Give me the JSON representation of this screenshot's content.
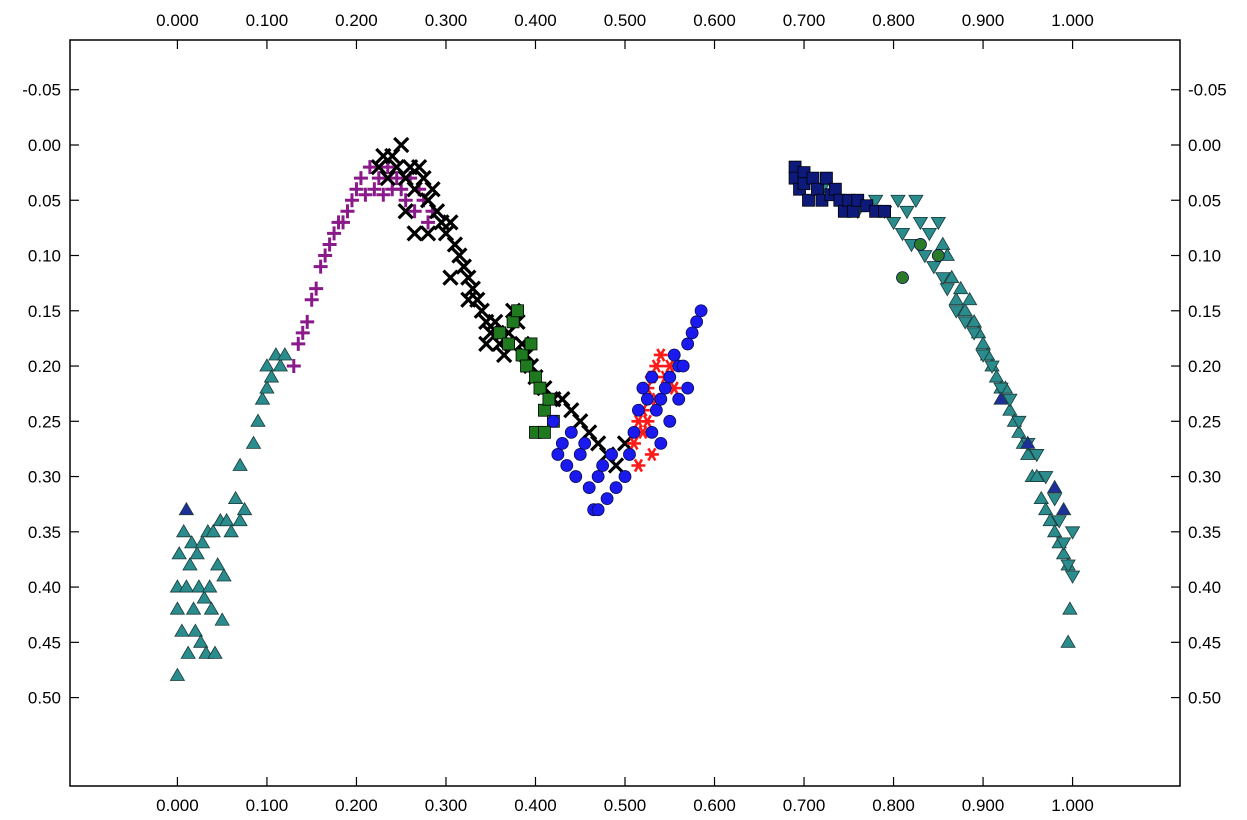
{
  "chart_data": {
    "type": "scatter",
    "title": "",
    "xlabel": "",
    "ylabel": "",
    "xlim": [
      -0.12,
      1.12
    ],
    "ylim": [
      -0.095,
      0.58
    ],
    "y_inverted": true,
    "grid": false,
    "x_ticks": [
      0.0,
      0.1,
      0.2,
      0.3,
      0.4,
      0.5,
      0.6,
      0.7,
      0.8,
      0.9,
      1.0
    ],
    "x_tick_labels": [
      "0.000",
      "0.100",
      "0.200",
      "0.300",
      "0.400",
      "0.500",
      "0.600",
      "0.700",
      "0.800",
      "0.900",
      "1.000"
    ],
    "y_ticks": [
      -0.05,
      0.0,
      0.05,
      0.1,
      0.15,
      0.2,
      0.25,
      0.3,
      0.35,
      0.4,
      0.45,
      0.5
    ],
    "y_tick_labels": [
      "-0.05",
      "0.00",
      "0.05",
      "0.10",
      "0.15",
      "0.20",
      "0.25",
      "0.30",
      "0.35",
      "0.40",
      "0.45",
      "0.50"
    ],
    "series": [
      {
        "marker": "triangle-up",
        "color": "#2a8c8c",
        "points": [
          [
            0.0,
            0.48
          ],
          [
            0.0,
            0.42
          ],
          [
            0.0,
            0.4
          ],
          [
            0.002,
            0.37
          ],
          [
            0.005,
            0.44
          ],
          [
            0.007,
            0.35
          ],
          [
            0.01,
            0.4
          ],
          [
            0.012,
            0.46
          ],
          [
            0.014,
            0.38
          ],
          [
            0.016,
            0.36
          ],
          [
            0.018,
            0.42
          ],
          [
            0.02,
            0.44
          ],
          [
            0.022,
            0.37
          ],
          [
            0.024,
            0.4
          ],
          [
            0.026,
            0.45
          ],
          [
            0.028,
            0.36
          ],
          [
            0.03,
            0.41
          ],
          [
            0.032,
            0.46
          ],
          [
            0.034,
            0.35
          ],
          [
            0.036,
            0.4
          ],
          [
            0.038,
            0.42
          ],
          [
            0.04,
            0.35
          ],
          [
            0.042,
            0.46
          ],
          [
            0.045,
            0.38
          ],
          [
            0.048,
            0.34
          ],
          [
            0.05,
            0.43
          ],
          [
            0.052,
            0.39
          ],
          [
            0.055,
            0.34
          ],
          [
            0.06,
            0.35
          ],
          [
            0.065,
            0.32
          ],
          [
            0.07,
            0.34
          ],
          [
            0.07,
            0.29
          ],
          [
            0.075,
            0.33
          ],
          [
            0.085,
            0.27
          ],
          [
            0.09,
            0.25
          ],
          [
            0.095,
            0.23
          ],
          [
            0.1,
            0.22
          ],
          [
            0.1,
            0.2
          ],
          [
            0.105,
            0.21
          ],
          [
            0.11,
            0.19
          ],
          [
            0.115,
            0.2
          ],
          [
            0.12,
            0.19
          ],
          [
            0.855,
            0.09
          ],
          [
            0.86,
            0.1
          ],
          [
            0.865,
            0.12
          ],
          [
            0.87,
            0.14
          ],
          [
            0.875,
            0.13
          ],
          [
            0.88,
            0.15
          ],
          [
            0.885,
            0.14
          ],
          [
            0.89,
            0.16
          ],
          [
            0.895,
            0.17
          ],
          [
            0.9,
            0.18
          ],
          [
            0.905,
            0.19
          ],
          [
            0.91,
            0.2
          ],
          [
            0.915,
            0.21
          ],
          [
            0.92,
            0.22
          ],
          [
            0.925,
            0.22
          ],
          [
            0.93,
            0.24
          ],
          [
            0.935,
            0.25
          ],
          [
            0.94,
            0.26
          ],
          [
            0.945,
            0.27
          ],
          [
            0.95,
            0.28
          ],
          [
            0.955,
            0.3
          ],
          [
            0.96,
            0.3
          ],
          [
            0.965,
            0.32
          ],
          [
            0.97,
            0.33
          ],
          [
            0.975,
            0.34
          ],
          [
            0.98,
            0.35
          ],
          [
            0.985,
            0.36
          ],
          [
            0.99,
            0.37
          ],
          [
            0.995,
            0.38
          ],
          [
            0.997,
            0.42
          ],
          [
            0.995,
            0.45
          ]
        ]
      },
      {
        "marker": "triangle-down",
        "color": "#2a8c8c",
        "points": [
          [
            0.72,
            0.04
          ],
          [
            0.74,
            0.05
          ],
          [
            0.76,
            0.06
          ],
          [
            0.78,
            0.05
          ],
          [
            0.79,
            0.06
          ],
          [
            0.8,
            0.07
          ],
          [
            0.805,
            0.05
          ],
          [
            0.81,
            0.08
          ],
          [
            0.815,
            0.06
          ],
          [
            0.82,
            0.09
          ],
          [
            0.825,
            0.05
          ],
          [
            0.83,
            0.07
          ],
          [
            0.835,
            0.1
          ],
          [
            0.84,
            0.08
          ],
          [
            0.845,
            0.11
          ],
          [
            0.85,
            0.07
          ],
          [
            0.855,
            0.12
          ],
          [
            0.86,
            0.13
          ],
          [
            0.87,
            0.15
          ],
          [
            0.88,
            0.16
          ],
          [
            0.89,
            0.17
          ],
          [
            0.9,
            0.19
          ],
          [
            0.91,
            0.2
          ],
          [
            0.92,
            0.22
          ],
          [
            0.93,
            0.23
          ],
          [
            0.94,
            0.25
          ],
          [
            0.95,
            0.27
          ],
          [
            0.96,
            0.28
          ],
          [
            0.97,
            0.3
          ],
          [
            0.98,
            0.32
          ],
          [
            0.985,
            0.34
          ],
          [
            0.99,
            0.36
          ],
          [
            0.995,
            0.38
          ],
          [
            1.0,
            0.35
          ],
          [
            1.0,
            0.39
          ]
        ]
      },
      {
        "marker": "triangle-up",
        "color": "#1f2f9a",
        "points": [
          [
            0.01,
            0.33
          ],
          [
            0.98,
            0.31
          ],
          [
            0.99,
            0.33
          ],
          [
            0.95,
            0.27
          ],
          [
            0.92,
            0.23
          ]
        ]
      },
      {
        "marker": "square",
        "color": "#0d1a7a",
        "points": [
          [
            0.69,
            0.02
          ],
          [
            0.69,
            0.03
          ],
          [
            0.695,
            0.04
          ],
          [
            0.7,
            0.025
          ],
          [
            0.7,
            0.035
          ],
          [
            0.705,
            0.05
          ],
          [
            0.71,
            0.03
          ],
          [
            0.715,
            0.04
          ],
          [
            0.72,
            0.05
          ],
          [
            0.725,
            0.03
          ],
          [
            0.73,
            0.045
          ],
          [
            0.735,
            0.04
          ],
          [
            0.74,
            0.05
          ],
          [
            0.745,
            0.06
          ],
          [
            0.75,
            0.05
          ],
          [
            0.755,
            0.06
          ],
          [
            0.76,
            0.05
          ],
          [
            0.77,
            0.055
          ],
          [
            0.78,
            0.06
          ],
          [
            0.79,
            0.06
          ]
        ]
      },
      {
        "marker": "circle",
        "color": "#2a7a2a",
        "points": [
          [
            0.81,
            0.12
          ],
          [
            0.83,
            0.09
          ],
          [
            0.85,
            0.1
          ]
        ]
      },
      {
        "marker": "plus",
        "color": "#8a1a8a",
        "points": [
          [
            0.13,
            0.2
          ],
          [
            0.135,
            0.18
          ],
          [
            0.14,
            0.17
          ],
          [
            0.145,
            0.16
          ],
          [
            0.15,
            0.14
          ],
          [
            0.155,
            0.13
          ],
          [
            0.16,
            0.11
          ],
          [
            0.165,
            0.1
          ],
          [
            0.17,
            0.09
          ],
          [
            0.175,
            0.08
          ],
          [
            0.18,
            0.07
          ],
          [
            0.185,
            0.07
          ],
          [
            0.19,
            0.06
          ],
          [
            0.195,
            0.05
          ],
          [
            0.2,
            0.04
          ],
          [
            0.205,
            0.03
          ],
          [
            0.21,
            0.045
          ],
          [
            0.215,
            0.02
          ],
          [
            0.22,
            0.04
          ],
          [
            0.225,
            0.03
          ],
          [
            0.23,
            0.045
          ],
          [
            0.235,
            0.02
          ],
          [
            0.24,
            0.04
          ],
          [
            0.245,
            0.03
          ],
          [
            0.25,
            0.04
          ],
          [
            0.255,
            0.05
          ],
          [
            0.26,
            0.03
          ],
          [
            0.265,
            0.06
          ],
          [
            0.27,
            0.04
          ],
          [
            0.275,
            0.05
          ],
          [
            0.28,
            0.07
          ],
          [
            0.285,
            0.06
          ]
        ]
      },
      {
        "marker": "x",
        "color": "#000000",
        "points": [
          [
            0.225,
            0.02
          ],
          [
            0.23,
            0.01
          ],
          [
            0.235,
            0.03
          ],
          [
            0.24,
            0.01
          ],
          [
            0.245,
            0.02
          ],
          [
            0.25,
            0.0
          ],
          [
            0.255,
            0.03
          ],
          [
            0.26,
            0.02
          ],
          [
            0.265,
            0.04
          ],
          [
            0.27,
            0.02
          ],
          [
            0.275,
            0.03
          ],
          [
            0.28,
            0.05
          ],
          [
            0.285,
            0.04
          ],
          [
            0.29,
            0.06
          ],
          [
            0.295,
            0.07
          ],
          [
            0.3,
            0.08
          ],
          [
            0.305,
            0.07
          ],
          [
            0.31,
            0.09
          ],
          [
            0.315,
            0.1
          ],
          [
            0.32,
            0.11
          ],
          [
            0.325,
            0.12
          ],
          [
            0.33,
            0.13
          ],
          [
            0.335,
            0.14
          ],
          [
            0.34,
            0.15
          ],
          [
            0.345,
            0.16
          ],
          [
            0.35,
            0.17
          ],
          [
            0.355,
            0.16
          ],
          [
            0.36,
            0.18
          ],
          [
            0.365,
            0.19
          ],
          [
            0.37,
            0.17
          ],
          [
            0.375,
            0.15
          ],
          [
            0.38,
            0.16
          ],
          [
            0.385,
            0.18
          ],
          [
            0.39,
            0.19
          ],
          [
            0.395,
            0.2
          ],
          [
            0.4,
            0.21
          ],
          [
            0.41,
            0.22
          ],
          [
            0.42,
            0.23
          ],
          [
            0.43,
            0.23
          ],
          [
            0.44,
            0.24
          ],
          [
            0.45,
            0.25
          ],
          [
            0.46,
            0.26
          ],
          [
            0.47,
            0.27
          ],
          [
            0.48,
            0.28
          ],
          [
            0.49,
            0.29
          ],
          [
            0.5,
            0.27
          ],
          [
            0.255,
            0.06
          ],
          [
            0.265,
            0.08
          ],
          [
            0.28,
            0.08
          ],
          [
            0.305,
            0.12
          ],
          [
            0.325,
            0.14
          ],
          [
            0.345,
            0.18
          ]
        ]
      },
      {
        "marker": "square",
        "color": "#1f7a1f",
        "points": [
          [
            0.36,
            0.17
          ],
          [
            0.37,
            0.18
          ],
          [
            0.375,
            0.16
          ],
          [
            0.38,
            0.15
          ],
          [
            0.385,
            0.19
          ],
          [
            0.39,
            0.2
          ],
          [
            0.395,
            0.18
          ],
          [
            0.4,
            0.21
          ],
          [
            0.405,
            0.22
          ],
          [
            0.41,
            0.24
          ],
          [
            0.415,
            0.23
          ],
          [
            0.42,
            0.25
          ],
          [
            0.4,
            0.26
          ],
          [
            0.41,
            0.26
          ]
        ]
      },
      {
        "marker": "star",
        "color": "#ff1a1a",
        "points": [
          [
            0.51,
            0.27
          ],
          [
            0.515,
            0.25
          ],
          [
            0.52,
            0.24
          ],
          [
            0.525,
            0.22
          ],
          [
            0.53,
            0.21
          ],
          [
            0.535,
            0.2
          ],
          [
            0.54,
            0.19
          ],
          [
            0.545,
            0.21
          ],
          [
            0.55,
            0.2
          ],
          [
            0.555,
            0.22
          ],
          [
            0.52,
            0.26
          ],
          [
            0.53,
            0.28
          ],
          [
            0.535,
            0.23
          ],
          [
            0.515,
            0.29
          ],
          [
            0.525,
            0.25
          ]
        ]
      },
      {
        "marker": "circle",
        "color": "#1a1aee",
        "points": [
          [
            0.42,
            0.25
          ],
          [
            0.425,
            0.28
          ],
          [
            0.43,
            0.27
          ],
          [
            0.435,
            0.29
          ],
          [
            0.44,
            0.26
          ],
          [
            0.445,
            0.3
          ],
          [
            0.45,
            0.28
          ],
          [
            0.455,
            0.27
          ],
          [
            0.46,
            0.31
          ],
          [
            0.465,
            0.33
          ],
          [
            0.47,
            0.3
          ],
          [
            0.475,
            0.29
          ],
          [
            0.48,
            0.32
          ],
          [
            0.485,
            0.28
          ],
          [
            0.49,
            0.31
          ],
          [
            0.5,
            0.3
          ],
          [
            0.505,
            0.28
          ],
          [
            0.51,
            0.26
          ],
          [
            0.515,
            0.24
          ],
          [
            0.52,
            0.22
          ],
          [
            0.525,
            0.23
          ],
          [
            0.53,
            0.21
          ],
          [
            0.535,
            0.24
          ],
          [
            0.54,
            0.23
          ],
          [
            0.545,
            0.22
          ],
          [
            0.55,
            0.21
          ],
          [
            0.555,
            0.19
          ],
          [
            0.56,
            0.2
          ],
          [
            0.565,
            0.2
          ],
          [
            0.57,
            0.18
          ],
          [
            0.575,
            0.17
          ],
          [
            0.58,
            0.16
          ],
          [
            0.585,
            0.15
          ],
          [
            0.57,
            0.22
          ],
          [
            0.56,
            0.23
          ],
          [
            0.55,
            0.25
          ],
          [
            0.54,
            0.27
          ],
          [
            0.53,
            0.26
          ],
          [
            0.47,
            0.33
          ]
        ]
      }
    ]
  }
}
